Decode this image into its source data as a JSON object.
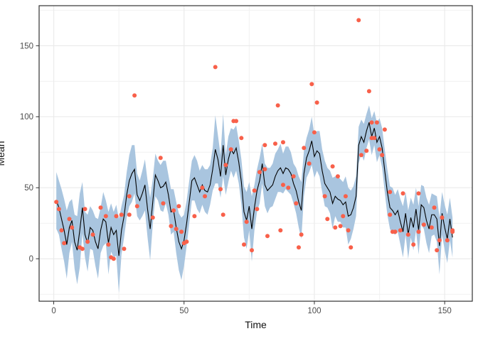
{
  "chart_data": {
    "type": "line",
    "title": "",
    "xlabel": "Time",
    "ylabel": "Mean",
    "legend": "none",
    "grid": true,
    "xlim": [
      -5.6,
      160.6
    ],
    "ylim": [
      -29.9,
      178.2
    ],
    "x_major_ticks": [
      0,
      50,
      100,
      150
    ],
    "x_minor_gridlines": [
      25,
      75,
      125
    ],
    "y_major_ticks": [
      0,
      50,
      100,
      150
    ],
    "y_minor_gridlines": [
      -25,
      25,
      75,
      125,
      175
    ],
    "x_start": 1,
    "x_step": 1,
    "series": [
      {
        "name": "mean-line",
        "type": "line",
        "color": "#000000",
        "values": [
          41,
          36,
          28,
          20,
          10,
          22,
          27,
          12,
          6,
          20,
          36,
          17,
          11,
          22,
          20,
          12,
          7,
          20,
          28,
          26,
          11,
          22,
          17,
          20,
          2,
          20,
          30,
          45,
          55,
          60,
          63,
          45,
          41,
          46,
          52,
          35,
          21,
          40,
          59,
          55,
          50,
          51,
          54,
          45,
          33,
          34,
          22,
          12,
          7,
          13,
          25,
          40,
          55,
          57,
          52,
          47,
          52,
          48,
          47,
          52,
          63,
          77,
          70,
          58,
          80,
          59,
          70,
          77,
          74,
          78,
          68,
          54,
          33,
          27,
          37,
          21,
          36,
          48,
          55,
          67,
          52,
          48,
          50,
          52,
          58,
          62,
          64,
          60,
          64,
          63,
          60,
          53,
          48,
          40,
          34,
          60,
          71,
          76,
          83,
          72,
          76,
          74,
          62,
          53,
          50,
          47,
          39,
          44,
          42,
          41,
          38,
          40,
          30,
          31,
          36,
          44,
          80,
          86,
          82,
          90,
          96,
          86,
          92,
          82,
          86,
          78,
          62,
          47,
          36,
          34,
          31,
          34,
          26,
          19,
          32,
          17,
          29,
          22,
          35,
          20,
          38,
          36,
          27,
          21,
          31,
          31,
          28,
          9,
          32,
          22,
          14,
          28,
          15
        ]
      },
      {
        "name": "confidence-ribbon",
        "type": "ribbon",
        "color": "#a9c5df",
        "halfwidth": [
          20,
          19,
          21,
          22,
          24,
          18,
          15,
          19,
          24,
          26,
          18,
          16,
          20,
          15,
          14,
          17,
          21,
          16,
          19,
          15,
          22,
          17,
          16,
          18,
          26,
          17,
          15,
          16,
          18,
          20,
          17,
          15,
          14,
          16,
          18,
          20,
          22,
          16,
          15,
          14,
          16,
          18,
          15,
          14,
          16,
          15,
          18,
          20,
          22,
          18,
          16,
          15,
          14,
          16,
          17,
          15,
          14,
          15,
          16,
          14,
          15,
          24,
          17,
          15,
          22,
          14,
          16,
          15,
          17,
          16,
          15,
          16,
          18,
          20,
          17,
          23,
          16,
          15,
          16,
          14,
          15,
          16,
          14,
          15,
          16,
          15,
          17,
          14,
          15,
          16,
          15,
          14,
          16,
          18,
          20,
          16,
          14,
          15,
          17,
          15,
          14,
          16,
          15,
          16,
          14,
          15,
          18,
          14,
          16,
          15,
          16,
          18,
          20,
          17,
          15,
          14,
          13,
          12,
          13,
          12,
          12,
          13,
          12,
          14,
          13,
          14,
          15,
          16,
          15,
          16,
          14,
          15,
          16,
          18,
          15,
          17,
          14,
          16,
          15,
          17,
          14,
          15,
          16,
          17,
          15,
          14,
          16,
          20,
          15,
          16,
          17,
          15,
          14
        ]
      },
      {
        "name": "observations",
        "type": "scatter",
        "color": "#f8604a",
        "points": [
          [
            1,
            40
          ],
          [
            2,
            35
          ],
          [
            3,
            20
          ],
          [
            4,
            11
          ],
          [
            6,
            28
          ],
          [
            7,
            22
          ],
          [
            10,
            8
          ],
          [
            11,
            7
          ],
          [
            12,
            35
          ],
          [
            13,
            12
          ],
          [
            15,
            17
          ],
          [
            18,
            36
          ],
          [
            20,
            30
          ],
          [
            21,
            10
          ],
          [
            22,
            1
          ],
          [
            23,
            0
          ],
          [
            24,
            30
          ],
          [
            26,
            31
          ],
          [
            27,
            7
          ],
          [
            29,
            44
          ],
          [
            29,
            31
          ],
          [
            31,
            115
          ],
          [
            32,
            37
          ],
          [
            38,
            29
          ],
          [
            41,
            71
          ],
          [
            42,
            39
          ],
          [
            45,
            23
          ],
          [
            46,
            34
          ],
          [
            47,
            21
          ],
          [
            48,
            37
          ],
          [
            49,
            19
          ],
          [
            50,
            11
          ],
          [
            51,
            12
          ],
          [
            54,
            30
          ],
          [
            57,
            50
          ],
          [
            58,
            44
          ],
          [
            62,
            135
          ],
          [
            64,
            49
          ],
          [
            65,
            31
          ],
          [
            66,
            66
          ],
          [
            68,
            77
          ],
          [
            69,
            97
          ],
          [
            70,
            97
          ],
          [
            72,
            85
          ],
          [
            73,
            10
          ],
          [
            74,
            26
          ],
          [
            76,
            6
          ],
          [
            77,
            48
          ],
          [
            78,
            35
          ],
          [
            79,
            61
          ],
          [
            81,
            80
          ],
          [
            81,
            63
          ],
          [
            82,
            16
          ],
          [
            85,
            81
          ],
          [
            86,
            108
          ],
          [
            87,
            20
          ],
          [
            88,
            82
          ],
          [
            88,
            52
          ],
          [
            90,
            50
          ],
          [
            92,
            58
          ],
          [
            93,
            39
          ],
          [
            94,
            8
          ],
          [
            95,
            17
          ],
          [
            96,
            78
          ],
          [
            98,
            67
          ],
          [
            99,
            123
          ],
          [
            100,
            89
          ],
          [
            101,
            110
          ],
          [
            104,
            44
          ],
          [
            105,
            28
          ],
          [
            107,
            65
          ],
          [
            108,
            22
          ],
          [
            109,
            58
          ],
          [
            110,
            23
          ],
          [
            111,
            30
          ],
          [
            112,
            44
          ],
          [
            113,
            20
          ],
          [
            114,
            8
          ],
          [
            117,
            168
          ],
          [
            118,
            73
          ],
          [
            120,
            76
          ],
          [
            121,
            118
          ],
          [
            122,
            96
          ],
          [
            122,
            85
          ],
          [
            123,
            85
          ],
          [
            124,
            96
          ],
          [
            125,
            77
          ],
          [
            126,
            73
          ],
          [
            127,
            91
          ],
          [
            129,
            47
          ],
          [
            129,
            31
          ],
          [
            130,
            19
          ],
          [
            131,
            19
          ],
          [
            133,
            20
          ],
          [
            134,
            46
          ],
          [
            136,
            17
          ],
          [
            138,
            10
          ],
          [
            140,
            46
          ],
          [
            140,
            19
          ],
          [
            142,
            24
          ],
          [
            145,
            22
          ],
          [
            146,
            36
          ],
          [
            147,
            6
          ],
          [
            148,
            13
          ],
          [
            149,
            29
          ],
          [
            151,
            13
          ],
          [
            153,
            20
          ],
          [
            153,
            19
          ]
        ]
      }
    ]
  },
  "style": {
    "panel_background": "#ffffff",
    "panel_border": "#333333",
    "grid_major_color": "#ebebeb",
    "grid_minor_color": "#f1f1f1",
    "tick_mark_color": "#333333",
    "tick_label_color": "#4d4d4d",
    "axis_title_color": "#111111",
    "point_color": "#f8604a",
    "ribbon_color": "#a9c5df",
    "line_color": "#000000"
  }
}
